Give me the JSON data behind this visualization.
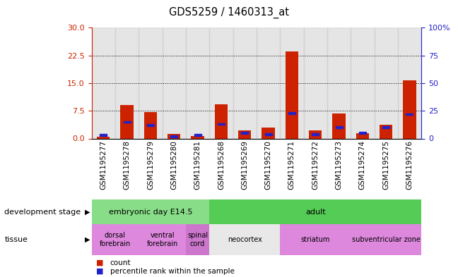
{
  "title": "GDS5259 / 1460313_at",
  "samples": [
    "GSM1195277",
    "GSM1195278",
    "GSM1195279",
    "GSM1195280",
    "GSM1195281",
    "GSM1195268",
    "GSM1195269",
    "GSM1195270",
    "GSM1195271",
    "GSM1195272",
    "GSM1195273",
    "GSM1195274",
    "GSM1195275",
    "GSM1195276"
  ],
  "red_values": [
    0.5,
    9.0,
    7.2,
    1.2,
    0.6,
    9.2,
    2.2,
    3.0,
    23.5,
    2.2,
    6.8,
    1.5,
    3.8,
    15.8
  ],
  "blue_values_pct": [
    3,
    15,
    12,
    2,
    3,
    13,
    5,
    4,
    23,
    4,
    10,
    5,
    10,
    22
  ],
  "left_ylim": [
    0,
    30
  ],
  "left_yticks": [
    0,
    7.5,
    15,
    22.5,
    30
  ],
  "right_ylim": [
    0,
    100
  ],
  "right_yticks": [
    0,
    25,
    50,
    75,
    100
  ],
  "right_yticklabels": [
    "0",
    "25",
    "50",
    "75",
    "100%"
  ],
  "red_color": "#cc2200",
  "blue_color": "#2222cc",
  "bar_width": 0.55,
  "dev_stage_label": "development stage",
  "tissue_label": "tissue",
  "dev_stages": [
    {
      "label": "embryonic day E14.5",
      "start": 0,
      "end": 4,
      "color": "#88dd88"
    },
    {
      "label": "adult",
      "start": 5,
      "end": 13,
      "color": "#55cc55"
    }
  ],
  "tissues": [
    {
      "label": "dorsal\nforebrain",
      "start": 0,
      "end": 1,
      "color": "#dd88dd"
    },
    {
      "label": "ventral\nforebrain",
      "start": 2,
      "end": 3,
      "color": "#dd88dd"
    },
    {
      "label": "spinal\ncord",
      "start": 4,
      "end": 4,
      "color": "#cc77cc"
    },
    {
      "label": "neocortex",
      "start": 5,
      "end": 7,
      "color": "#e8e8e8"
    },
    {
      "label": "striatum",
      "start": 8,
      "end": 10,
      "color": "#dd88dd"
    },
    {
      "label": "subventricular zone",
      "start": 11,
      "end": 13,
      "color": "#dd88dd"
    }
  ],
  "legend_count_label": "count",
  "legend_pct_label": "percentile rank within the sample",
  "left_axis_color": "#cc2200",
  "right_axis_color": "#2222cc",
  "col_bg": "#cccccc"
}
